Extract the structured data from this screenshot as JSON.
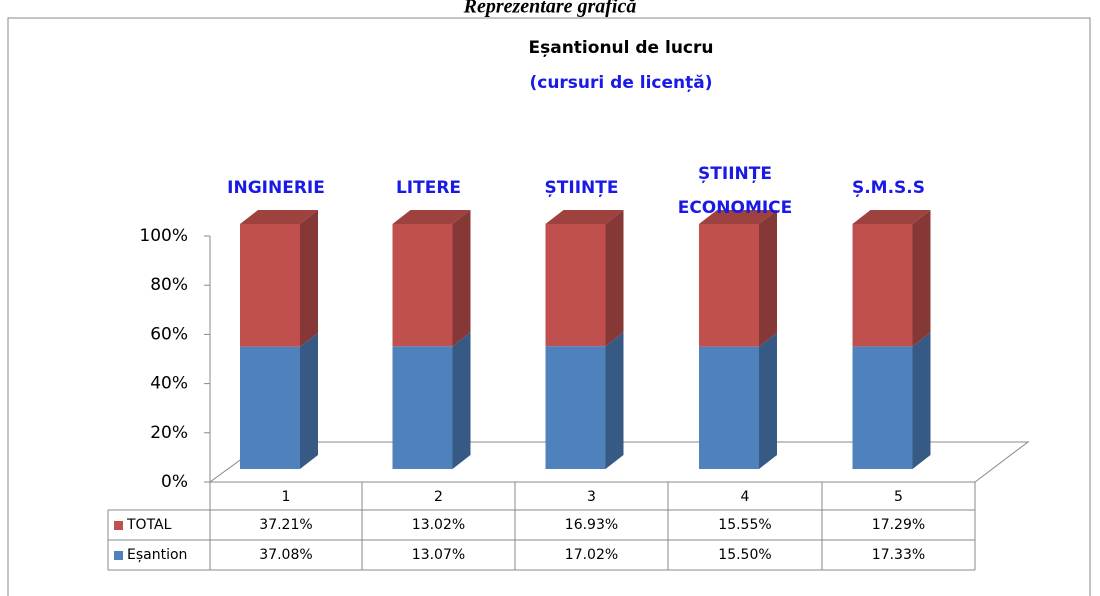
{
  "chart_data": {
    "type": "bar3d_stacked_percent",
    "header": "Reprezentare grafică",
    "title": "Eșantionul de lucru",
    "subtitle": "(cursuri de licență)",
    "annotations": [
      "INGINERIE",
      "LITERE",
      "ȘTIINȚE",
      "ȘTIINȚE ECONOMICE",
      "Ș.M.S.S"
    ],
    "categories": [
      "1",
      "2",
      "3",
      "4",
      "5"
    ],
    "series": [
      {
        "name": "TOTAL",
        "color": "#c0504d",
        "values": [
          37.21,
          13.02,
          16.93,
          15.55,
          17.29
        ],
        "value_labels": [
          "37.21%",
          "13.02%",
          "16.93%",
          "15.55%",
          "17.29%"
        ]
      },
      {
        "name": "Eșantion",
        "color": "#4f81bd",
        "values": [
          37.08,
          13.07,
          17.02,
          15.5,
          17.33
        ],
        "value_labels": [
          "37.08%",
          "13.07%",
          "17.02%",
          "15.50%",
          "17.33%"
        ]
      }
    ],
    "stacking": "percent",
    "ylim": [
      0,
      100
    ],
    "yticks": [
      {
        "value": 0,
        "label": "0%"
      },
      {
        "value": 20,
        "label": "20%"
      },
      {
        "value": 40,
        "label": "40%"
      },
      {
        "value": 60,
        "label": "60%"
      },
      {
        "value": 80,
        "label": "80%"
      },
      {
        "value": 100,
        "label": "100%"
      }
    ]
  }
}
